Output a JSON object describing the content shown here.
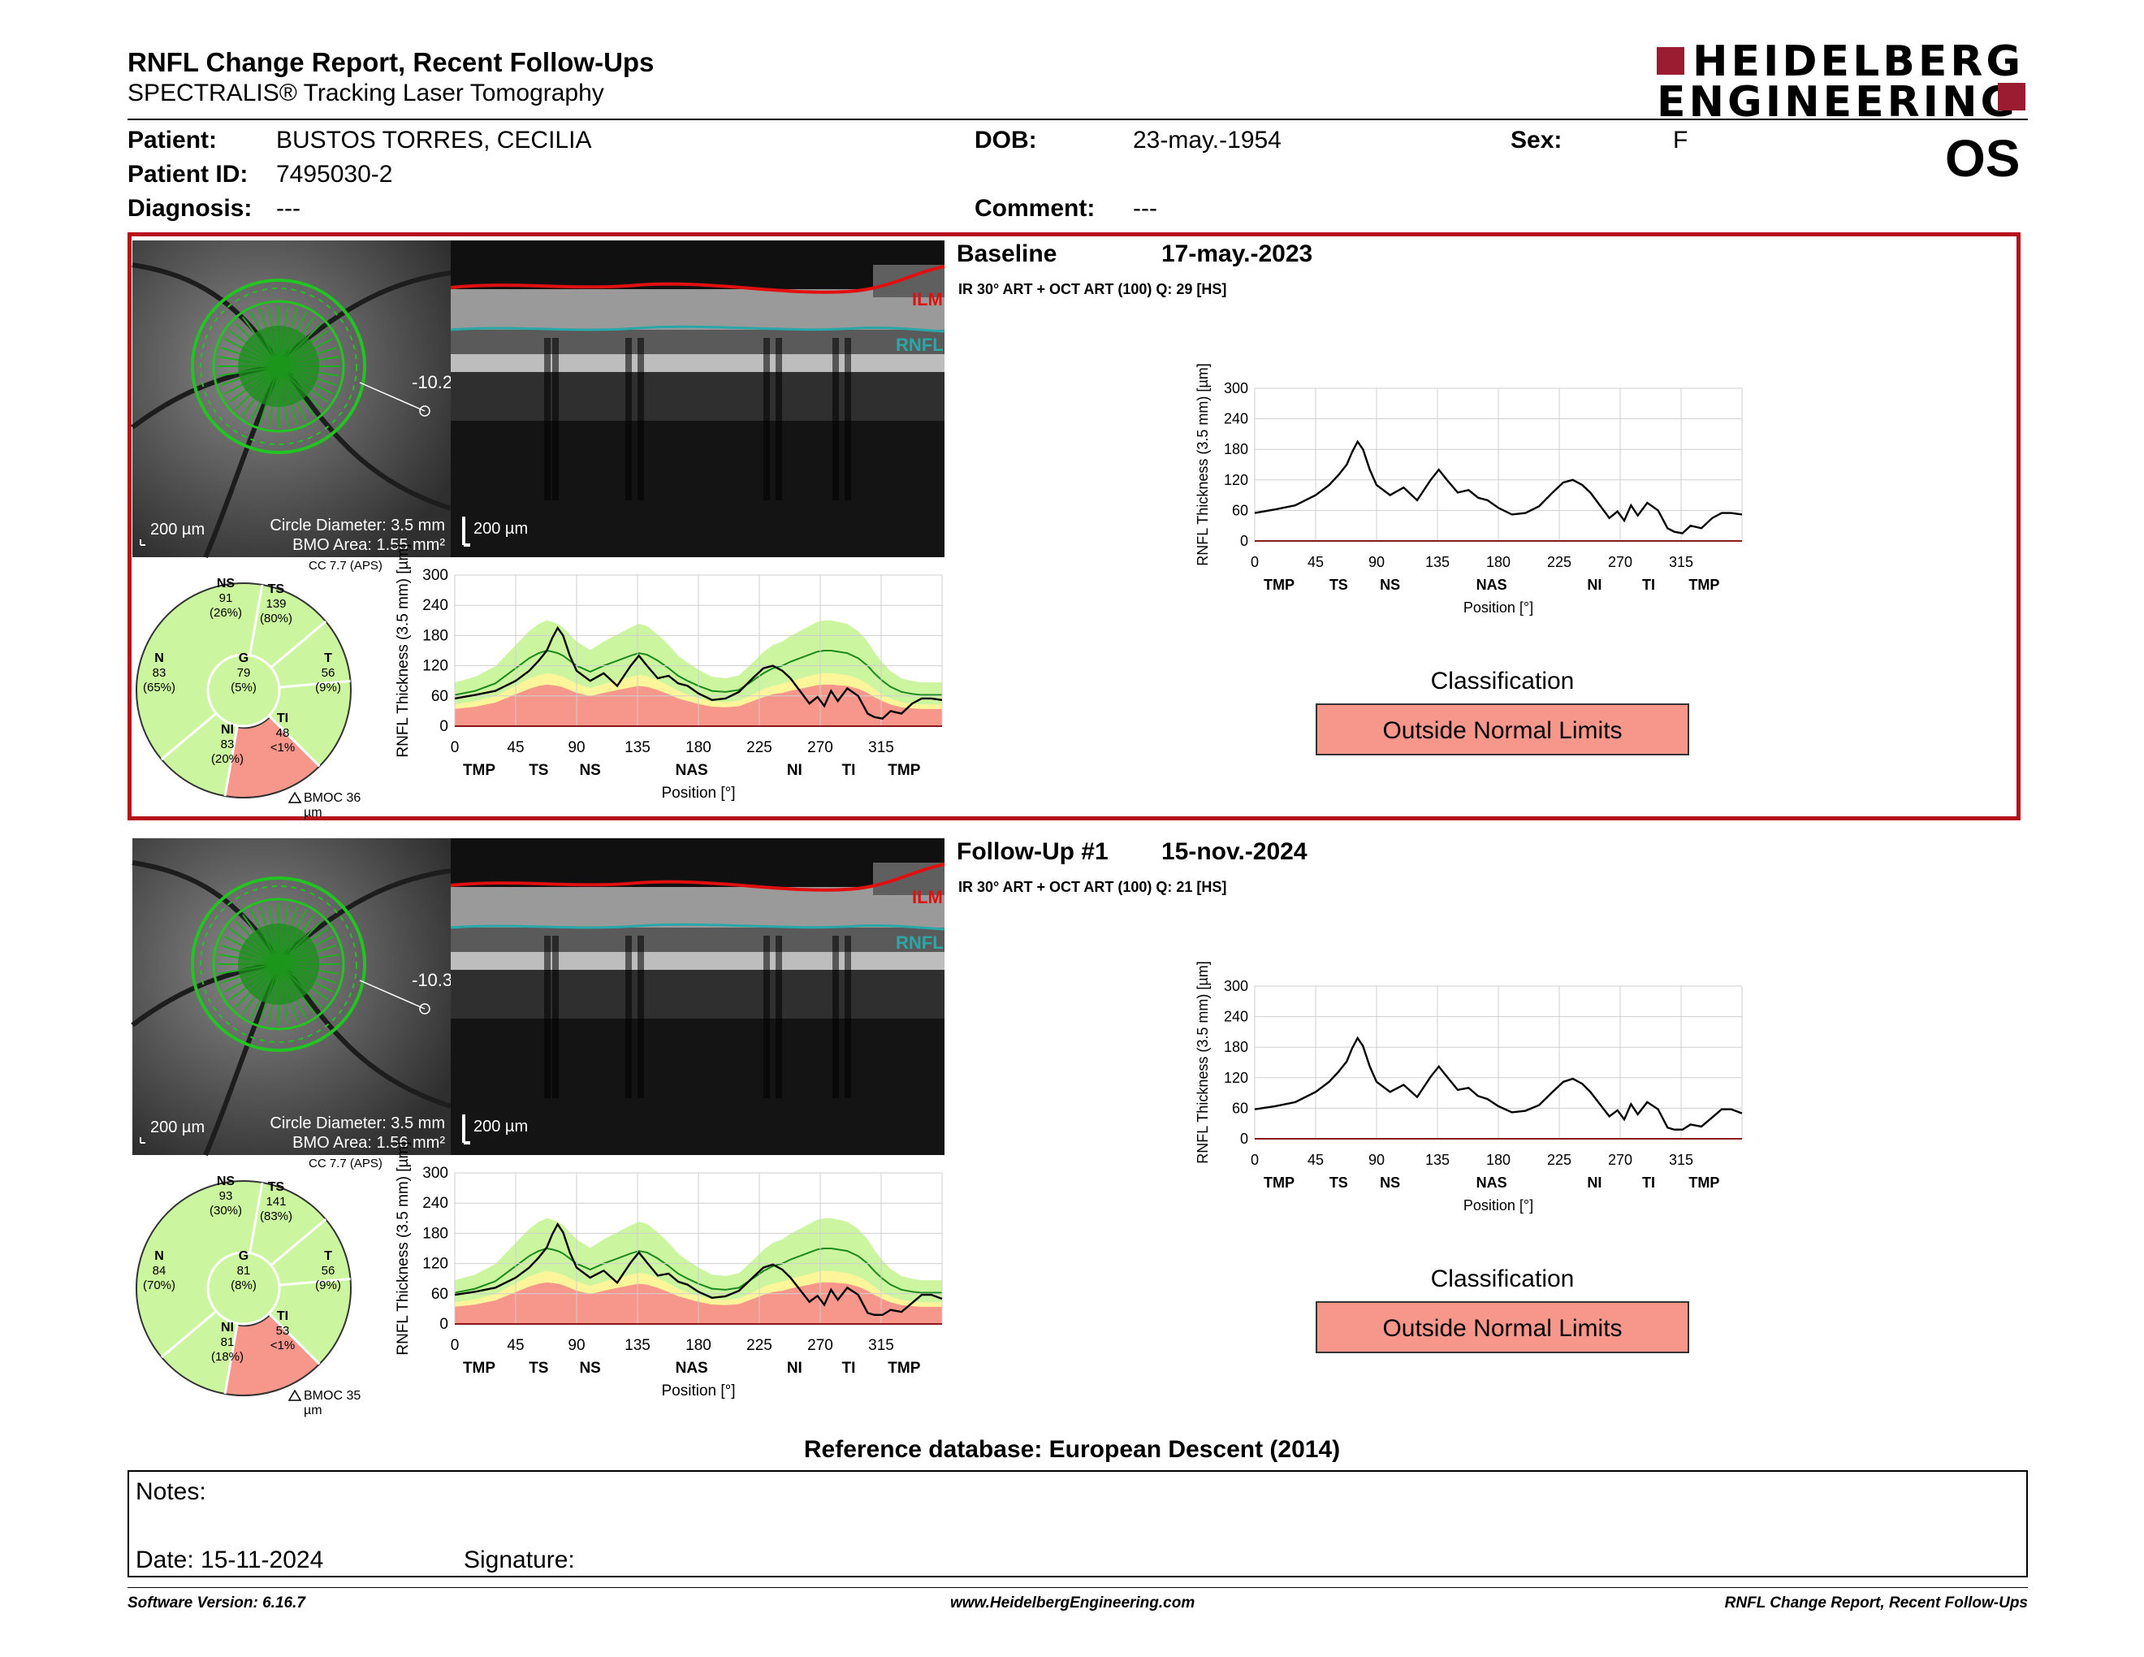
{
  "header": {
    "title": "RNFL Change Report, Recent Follow-Ups",
    "subtitle": "SPECTRALIS® Tracking Laser Tomography",
    "logo_line1": "HEIDELBERG",
    "logo_line2": "ENGINEERING",
    "eye": "OS"
  },
  "patient": {
    "patient_label": "Patient:",
    "patient_value": "BUSTOS TORRES, CECILIA",
    "id_label": "Patient ID:",
    "id_value": "7495030-2",
    "diagnosis_label": "Diagnosis:",
    "diagnosis_value": "---",
    "dob_label": "DOB:",
    "dob_value": "23-may.-1954",
    "comment_label": "Comment:",
    "comment_value": "---",
    "sex_label": "Sex:",
    "sex_value": "F"
  },
  "exams": [
    {
      "name": "Baseline",
      "date": "17-may.-2023",
      "scan_info": "IR 30° ART + OCT ART (100) Q: 29 [HS]",
      "fundus_scale": "200 µm",
      "circle_diameter": "Circle Diameter: 3.5 mm",
      "bmo_area": "BMO Area: 1.55 mm²",
      "fovea_angle": "-10.2°",
      "bscan_scale": "200 µm",
      "ilm_label": "ILM",
      "rnfl_label": "RNFL",
      "cc_label": "CC 7.7 (APS)",
      "bmoc": "BMOC 36 µm",
      "sectors": {
        "NS": {
          "name": "NS",
          "value": "91",
          "pct": "(26%)"
        },
        "TS": {
          "name": "TS",
          "value": "139",
          "pct": "(80%)"
        },
        "N": {
          "name": "N",
          "value": "83",
          "pct": "(65%)"
        },
        "G": {
          "name": "G",
          "value": "79",
          "pct": "(5%)"
        },
        "T": {
          "name": "T",
          "value": "56",
          "pct": "(9%)"
        },
        "NI": {
          "name": "NI",
          "value": "83",
          "pct": "(20%)"
        },
        "TI": {
          "name": "TI",
          "value": "48",
          "pct": "<1%"
        }
      },
      "classification_label": "Classification",
      "classification": "Outside Normal Limits"
    },
    {
      "name": "Follow-Up #1",
      "date": "15-nov.-2024",
      "scan_info": "IR 30° ART + OCT ART (100) Q: 21 [HS]",
      "fundus_scale": "200 µm",
      "circle_diameter": "Circle Diameter: 3.5 mm",
      "bmo_area": "BMO Area: 1.56 mm²",
      "fovea_angle": "-10.3°",
      "bscan_scale": "200 µm",
      "ilm_label": "ILM",
      "rnfl_label": "RNFL",
      "cc_label": "CC 7.7 (APS)",
      "bmoc": "BMOC 35 µm",
      "sectors": {
        "NS": {
          "name": "NS",
          "value": "93",
          "pct": "(30%)"
        },
        "TS": {
          "name": "TS",
          "value": "141",
          "pct": "(83%)"
        },
        "N": {
          "name": "N",
          "value": "84",
          "pct": "(70%)"
        },
        "G": {
          "name": "G",
          "value": "81",
          "pct": "(8%)"
        },
        "T": {
          "name": "T",
          "value": "56",
          "pct": "(9%)"
        },
        "NI": {
          "name": "NI",
          "value": "81",
          "pct": "(18%)"
        },
        "TI": {
          "name": "TI",
          "value": "53",
          "pct": "<1%"
        }
      },
      "classification_label": "Classification",
      "classification": "Outside Normal Limits"
    }
  ],
  "chart_data": [
    {
      "type": "line",
      "title": "",
      "ylabel": "RNFL Thickness (3.5 mm) [µm]",
      "xlabel": "Position [°]",
      "xlim": [
        0,
        360
      ],
      "ylim": [
        0,
        300
      ],
      "xticks": [
        0,
        45,
        90,
        135,
        180,
        225,
        270,
        315
      ],
      "yticks": [
        0,
        60,
        120,
        180,
        240,
        300
      ],
      "sector_labels": [
        "TMP",
        "TS",
        "NS",
        "NAS",
        "NI",
        "TI",
        "TMP"
      ],
      "sector_label_x": [
        18,
        62,
        100,
        175,
        251,
        291,
        332
      ],
      "x": [
        0,
        15,
        30,
        45,
        55,
        62,
        68,
        72,
        76,
        80,
        85,
        90,
        100,
        110,
        120,
        130,
        136,
        142,
        150,
        158,
        165,
        172,
        180,
        190,
        200,
        210,
        220,
        228,
        235,
        242,
        248,
        255,
        262,
        268,
        273,
        278,
        283,
        290,
        298,
        305,
        310,
        316,
        322,
        330,
        338,
        345,
        352,
        360
      ],
      "series": [
        {
          "name": "Baseline",
          "values": [
            55,
            62,
            70,
            90,
            110,
            130,
            150,
            175,
            195,
            180,
            140,
            110,
            90,
            105,
            80,
            120,
            140,
            120,
            95,
            100,
            85,
            80,
            65,
            52,
            55,
            68,
            95,
            115,
            120,
            110,
            95,
            70,
            45,
            58,
            40,
            70,
            50,
            75,
            60,
            25,
            18,
            15,
            30,
            25,
            45,
            55,
            55,
            52
          ]
        }
      ],
      "normal_mean": [
        62,
        70,
        85,
        115,
        135,
        145,
        150,
        148,
        145,
        140,
        130,
        120,
        108,
        120,
        130,
        140,
        145,
        142,
        130,
        115,
        100,
        90,
        80,
        70,
        68,
        72,
        90,
        105,
        115,
        120,
        128,
        135,
        142,
        148,
        150,
        150,
        148,
        145,
        135,
        120,
        105,
        90,
        78,
        68,
        64,
        62,
        62,
        62
      ]
    },
    {
      "type": "line",
      "title": "",
      "ylabel": "RNFL Thickness (3.5 mm) [µm]",
      "xlabel": "Position [°]",
      "xlim": [
        0,
        360
      ],
      "ylim": [
        0,
        300
      ],
      "xticks": [
        0,
        45,
        90,
        135,
        180,
        225,
        270,
        315
      ],
      "yticks": [
        0,
        60,
        120,
        180,
        240,
        300
      ],
      "sector_labels": [
        "TMP",
        "TS",
        "NS",
        "NAS",
        "NI",
        "TI",
        "TMP"
      ],
      "sector_label_x": [
        18,
        62,
        100,
        175,
        251,
        291,
        332
      ],
      "x": [
        0,
        15,
        30,
        45,
        55,
        62,
        68,
        72,
        76,
        80,
        85,
        90,
        100,
        110,
        120,
        130,
        136,
        142,
        150,
        158,
        165,
        172,
        180,
        190,
        200,
        210,
        220,
        228,
        235,
        242,
        248,
        255,
        262,
        268,
        273,
        278,
        283,
        290,
        298,
        305,
        310,
        316,
        322,
        330,
        338,
        345,
        352,
        360
      ],
      "series": [
        {
          "name": "Follow-Up #1",
          "values": [
            58,
            64,
            72,
            92,
            112,
            132,
            152,
            178,
            198,
            182,
            142,
            112,
            92,
            106,
            82,
            122,
            142,
            122,
            96,
            100,
            84,
            78,
            64,
            52,
            55,
            66,
            92,
            112,
            118,
            108,
            92,
            68,
            44,
            56,
            38,
            68,
            48,
            72,
            58,
            22,
            18,
            18,
            28,
            24,
            42,
            58,
            58,
            50
          ]
        }
      ],
      "normal_mean": [
        62,
        70,
        85,
        115,
        135,
        145,
        150,
        148,
        145,
        140,
        130,
        120,
        108,
        120,
        130,
        140,
        145,
        142,
        130,
        115,
        100,
        90,
        80,
        70,
        68,
        72,
        90,
        105,
        115,
        120,
        128,
        135,
        142,
        148,
        150,
        150,
        148,
        145,
        135,
        120,
        105,
        90,
        78,
        68,
        64,
        62,
        62,
        62
      ]
    }
  ],
  "reference_db": "Reference database: European Descent (2014)",
  "notes": {
    "notes_label": "Notes:",
    "date_label": "Date: 15-11-2024",
    "signature_label": "Signature:"
  },
  "footer": {
    "software": "Software Version: 6.16.7",
    "website": "www.HeidelbergEngineering.com",
    "report": "RNFL Change Report, Recent Follow-Ups"
  },
  "colors": {
    "brand": "#9b1b30",
    "normal_green": "#ccf5a0",
    "borderline_yellow": "#fdf59a",
    "outside_red": "#f7968a",
    "ilm": "#e01010",
    "rnfl": "#2aa7a7"
  }
}
